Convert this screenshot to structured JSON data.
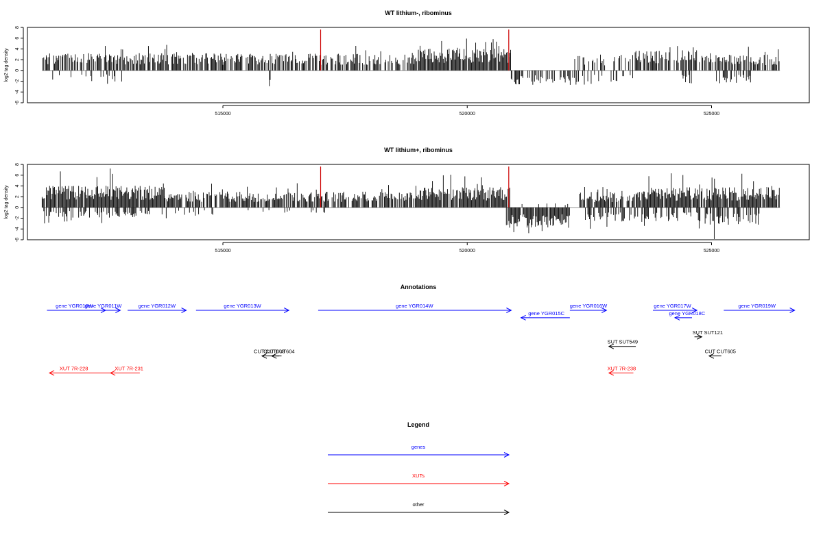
{
  "colors": {
    "gene": "#0000ff",
    "xut": "#ff0000",
    "other": "#000000",
    "marker": "#cc0000",
    "axis": "#000000",
    "zero": "#999999"
  },
  "chart_data": [
    {
      "type": "bar",
      "title": "WT lithium-, ribominus",
      "ylabel": "log2 tag density",
      "xlabel": "",
      "xlim": [
        511000,
        527000
      ],
      "ylim": [
        -6,
        8
      ],
      "yticks": [
        -6,
        -4,
        -2,
        0,
        2,
        4,
        6,
        8
      ],
      "xticks": [
        515000,
        520000,
        525000
      ],
      "data_extent": [
        511300,
        526400
      ],
      "marker_positions": [
        517000,
        520850
      ],
      "marker_height": 7.6,
      "pos_regions": [
        {
          "from": 511300,
          "to": 515000,
          "mean": 2.4,
          "max": 4.8,
          "density": 0.65
        },
        {
          "from": 515000,
          "to": 519000,
          "mean": 2.3,
          "max": 4.6,
          "density": 0.65
        },
        {
          "from": 519000,
          "to": 520900,
          "mean": 3.0,
          "max": 6.0,
          "density": 0.95
        },
        {
          "from": 520900,
          "to": 522200,
          "mean": 0,
          "max": 0,
          "density": 0
        },
        {
          "from": 522200,
          "to": 523300,
          "mean": 2.0,
          "max": 3.8,
          "density": 0.3
        },
        {
          "from": 523300,
          "to": 524700,
          "mean": 2.8,
          "max": 5.2,
          "density": 0.7
        },
        {
          "from": 524700,
          "to": 526400,
          "mean": 2.2,
          "max": 4.4,
          "density": 0.5
        }
      ],
      "neg_regions": [
        {
          "from": 511500,
          "to": 513000,
          "mean": -1.6,
          "max": -3.6,
          "density": 0.22
        },
        {
          "from": 515900,
          "to": 516100,
          "mean": -2.2,
          "max": -3.0,
          "density": 0.3
        },
        {
          "from": 520900,
          "to": 522400,
          "mean": -2.0,
          "max": -3.6,
          "density": 0.55
        },
        {
          "from": 522400,
          "to": 523400,
          "mean": -1.6,
          "max": -3.6,
          "density": 0.12
        },
        {
          "from": 524400,
          "to": 524600,
          "mean": -1.8,
          "max": -2.8,
          "density": 0.3
        },
        {
          "from": 525100,
          "to": 525800,
          "mean": -1.8,
          "max": -3.2,
          "density": 0.5
        }
      ]
    },
    {
      "type": "bar",
      "title": "WT lithium+, ribominus",
      "ylabel": "log2 tag density",
      "xlabel": "",
      "xlim": [
        511000,
        527000
      ],
      "ylim": [
        -6,
        8
      ],
      "yticks": [
        -6,
        -4,
        -2,
        0,
        2,
        4,
        6,
        8
      ],
      "xticks": [
        515000,
        520000,
        525000
      ],
      "data_extent": [
        511300,
        526400
      ],
      "marker_positions": [
        517000,
        520850
      ],
      "marker_height": 7.6,
      "pos_regions": [
        {
          "from": 511300,
          "to": 513800,
          "mean": 3.0,
          "max": 7.6,
          "density": 0.95
        },
        {
          "from": 513800,
          "to": 519000,
          "mean": 2.2,
          "max": 4.6,
          "density": 0.75
        },
        {
          "from": 519000,
          "to": 520900,
          "mean": 2.8,
          "max": 6.2,
          "density": 0.95
        },
        {
          "from": 520900,
          "to": 522300,
          "mean": 0.6,
          "max": 1.2,
          "density": 0.1
        },
        {
          "from": 522300,
          "to": 523700,
          "mean": 2.2,
          "max": 3.8,
          "density": 0.8
        },
        {
          "from": 523700,
          "to": 526400,
          "mean": 2.8,
          "max": 6.4,
          "density": 0.95
        }
      ],
      "neg_regions": [
        {
          "from": 511300,
          "to": 513500,
          "mean": -1.4,
          "max": -3.0,
          "density": 0.4
        },
        {
          "from": 513500,
          "to": 514800,
          "mean": -1.2,
          "max": -2.6,
          "density": 0.15
        },
        {
          "from": 515500,
          "to": 517200,
          "mean": -0.8,
          "max": -1.6,
          "density": 0.1
        },
        {
          "from": 520800,
          "to": 522100,
          "mean": -2.8,
          "max": -5.0,
          "density": 0.9
        },
        {
          "from": 522400,
          "to": 524800,
          "mean": -2.0,
          "max": -4.8,
          "density": 0.55
        },
        {
          "from": 524800,
          "to": 526000,
          "mean": -2.4,
          "max": -6.0,
          "density": 0.5
        }
      ]
    }
  ],
  "annotations": {
    "title": "Annotations",
    "features": [
      {
        "label": "gene YGR010W",
        "type": "gene",
        "dir": 1,
        "start": 511400,
        "end": 512600,
        "row": 0,
        "label_pos": 511960
      },
      {
        "label": "gene YGR011W",
        "type": "gene",
        "dir": 1,
        "start": 512200,
        "end": 512900,
        "row": 0,
        "label_pos": 512550
      },
      {
        "label": "gene YGR012W",
        "type": "gene",
        "dir": 1,
        "start": 513050,
        "end": 514250,
        "row": 0,
        "label_pos": 513650
      },
      {
        "label": "gene YGR013W",
        "type": "gene",
        "dir": 1,
        "start": 514450,
        "end": 516350,
        "row": 0,
        "label_pos": 515400
      },
      {
        "label": "gene YGR014W",
        "type": "gene",
        "dir": 1,
        "start": 516950,
        "end": 520900,
        "row": 0,
        "label_pos": 518920
      },
      {
        "label": "gene YGR015C",
        "type": "gene",
        "dir": -1,
        "start": 521100,
        "end": 522100,
        "row": 0.7,
        "label_pos": 521620
      },
      {
        "label": "gene YGR016W",
        "type": "gene",
        "dir": 1,
        "start": 522100,
        "end": 522850,
        "row": 0,
        "label_pos": 522480
      },
      {
        "label": "gene YGR017W",
        "type": "gene",
        "dir": 1,
        "start": 523800,
        "end": 524700,
        "row": 0,
        "label_pos": 524200
      },
      {
        "label": "gene YGR018C",
        "type": "gene",
        "dir": -1,
        "start": 524250,
        "end": 524600,
        "row": 0.7,
        "label_pos": 524500
      },
      {
        "label": "gene YGR019W",
        "type": "gene",
        "dir": 1,
        "start": 525250,
        "end": 526700,
        "row": 0,
        "label_pos": 525930
      },
      {
        "label": "SUT SUT549",
        "type": "other",
        "dir": -1,
        "start": 522900,
        "end": 523450,
        "row": 3.4,
        "label_pos": 523180
      },
      {
        "label": "SUT SUT121",
        "type": "other",
        "dir": 1,
        "start": 524650,
        "end": 524800,
        "row": 2.5,
        "label_pos": 524920
      },
      {
        "label": "CUT CUT603",
        "type": "other",
        "dir": -1,
        "start": 515800,
        "end": 516150,
        "row": 4.3,
        "label_pos": 515950
      },
      {
        "label": "CUT CUT604",
        "type": "other",
        "dir": -1,
        "start": 516000,
        "end": 516200,
        "row": 4.3,
        "label_pos": 516150
      },
      {
        "label": "CUT CUT605",
        "type": "other",
        "dir": -1,
        "start": 524950,
        "end": 525200,
        "row": 4.3,
        "label_pos": 525180
      },
      {
        "label": "XUT 7R-228",
        "type": "xut",
        "dir": -1,
        "start": 511450,
        "end": 512700,
        "row": 5.9,
        "label_pos": 511950
      },
      {
        "label": "XUT 7R-231",
        "type": "xut",
        "dir": -1,
        "start": 512700,
        "end": 513300,
        "row": 5.9,
        "label_pos": 513080
      },
      {
        "label": "XUT 7R-238",
        "type": "xut",
        "dir": -1,
        "start": 522900,
        "end": 523400,
        "row": 5.9,
        "label_pos": 523160
      }
    ]
  },
  "legend": {
    "title": "Legend",
    "items": [
      {
        "label": "genes",
        "type": "gene"
      },
      {
        "label": "XUTs",
        "type": "xut"
      },
      {
        "label": "other",
        "type": "other"
      }
    ]
  }
}
